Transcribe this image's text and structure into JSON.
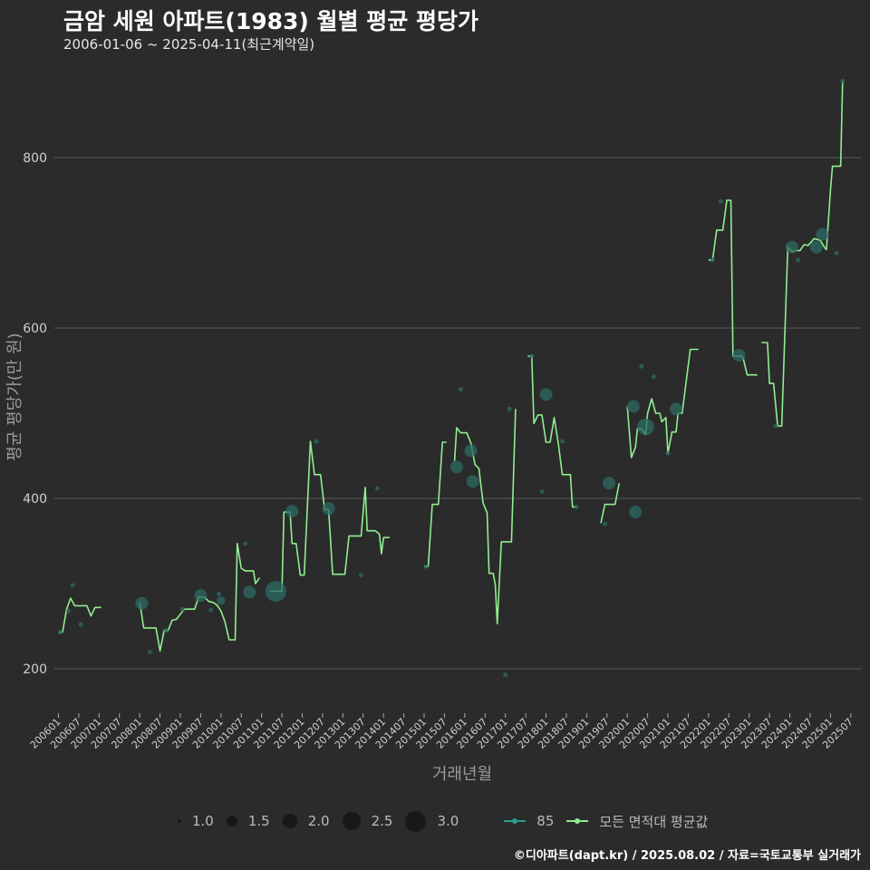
{
  "header": {
    "title": "금암 세원 아파트(1983) 월별 평균 평당가",
    "subtitle": "2006-01-06 ~ 2025-04-11(최근계약일)"
  },
  "credit": "©디아파트(dapt.kr) / 2025.08.02 / 자료=국토교통부 실거래가",
  "colors": {
    "background": "#2b2b2b",
    "grid": "#5a5a5a",
    "avg_line": "#90ee90",
    "area_line": "#2a9d8f",
    "points": "#2e6b63"
  },
  "legend": {
    "size_title": "",
    "sizes": [
      {
        "label": "1.0",
        "value": 1.0
      },
      {
        "label": "1.5",
        "value": 1.5
      },
      {
        "label": "2.0",
        "value": 2.0
      },
      {
        "label": "2.5",
        "value": 2.5
      },
      {
        "label": "3.0",
        "value": 3.0
      }
    ],
    "series": [
      {
        "label": "85",
        "color": "#2a9d8f"
      },
      {
        "label": "모든 면적대 평균값",
        "color": "#90ee90"
      }
    ]
  },
  "chart_data": {
    "type": "line",
    "title": "금암 세원 아파트(1983) 월별 평균 평당가",
    "xlabel": "거래년월",
    "ylabel": "평균 평당가(만 원)",
    "xlim": [
      2005.9,
      2025.75
    ],
    "ylim": [
      150,
      900
    ],
    "yticks": [
      200,
      400,
      600,
      800
    ],
    "xticks": [
      {
        "label": "200601",
        "x": 2006.0
      },
      {
        "label": "200607",
        "x": 2006.5
      },
      {
        "label": "200701",
        "x": 2007.0
      },
      {
        "label": "200707",
        "x": 2007.5
      },
      {
        "label": "200801",
        "x": 2008.0
      },
      {
        "label": "200807",
        "x": 2008.5
      },
      {
        "label": "200901",
        "x": 2009.0
      },
      {
        "label": "200907",
        "x": 2009.5
      },
      {
        "label": "201001",
        "x": 2010.0
      },
      {
        "label": "201007",
        "x": 2010.5
      },
      {
        "label": "201101",
        "x": 2011.0
      },
      {
        "label": "201107",
        "x": 2011.5
      },
      {
        "label": "201201",
        "x": 2012.0
      },
      {
        "label": "201207",
        "x": 2012.5
      },
      {
        "label": "201301",
        "x": 2013.0
      },
      {
        "label": "201307",
        "x": 2013.5
      },
      {
        "label": "201401",
        "x": 2014.0
      },
      {
        "label": "201407",
        "x": 2014.5
      },
      {
        "label": "201501",
        "x": 2015.0
      },
      {
        "label": "201507",
        "x": 2015.5
      },
      {
        "label": "201601",
        "x": 2016.0
      },
      {
        "label": "201607",
        "x": 2016.5
      },
      {
        "label": "201701",
        "x": 2017.0
      },
      {
        "label": "201707",
        "x": 2017.5
      },
      {
        "label": "201801",
        "x": 2018.0
      },
      {
        "label": "201807",
        "x": 2018.5
      },
      {
        "label": "201901",
        "x": 2019.0
      },
      {
        "label": "201907",
        "x": 2019.5
      },
      {
        "label": "202001",
        "x": 2020.0
      },
      {
        "label": "202007",
        "x": 2020.5
      },
      {
        "label": "202101",
        "x": 2021.0
      },
      {
        "label": "202107",
        "x": 2021.5
      },
      {
        "label": "202201",
        "x": 2022.0
      },
      {
        "label": "202207",
        "x": 2022.5
      },
      {
        "label": "202301",
        "x": 2023.0
      },
      {
        "label": "202307",
        "x": 2023.5
      },
      {
        "label": "202401",
        "x": 2024.0
      },
      {
        "label": "202407",
        "x": 2024.5
      },
      {
        "label": "202501",
        "x": 2025.0
      },
      {
        "label": "202507",
        "x": 2025.5
      }
    ],
    "avg_segments": [
      [
        [
          2006.0,
          243
        ],
        [
          2006.1,
          243
        ],
        [
          2006.2,
          270
        ],
        [
          2006.3,
          283
        ],
        [
          2006.4,
          274
        ],
        [
          2006.55,
          274
        ],
        [
          2006.7,
          274
        ],
        [
          2006.8,
          262
        ],
        [
          2006.9,
          272
        ],
        [
          2007.05,
          272
        ]
      ],
      [
        [
          2008.0,
          278
        ],
        [
          2008.1,
          248
        ],
        [
          2008.4,
          248
        ],
        [
          2008.5,
          221
        ],
        [
          2008.6,
          245
        ],
        [
          2008.7,
          245
        ],
        [
          2008.8,
          257
        ],
        [
          2008.9,
          258
        ],
        [
          2009.0,
          264
        ],
        [
          2009.1,
          270
        ],
        [
          2009.35,
          270
        ],
        [
          2009.45,
          284
        ],
        [
          2009.6,
          284
        ],
        [
          2009.7,
          279
        ],
        [
          2009.8,
          278
        ],
        [
          2009.9,
          275
        ],
        [
          2010.0,
          268
        ],
        [
          2010.1,
          255
        ],
        [
          2010.2,
          234
        ],
        [
          2010.35,
          234
        ],
        [
          2010.4,
          347
        ],
        [
          2010.5,
          318
        ],
        [
          2010.6,
          315
        ],
        [
          2010.8,
          315
        ],
        [
          2010.85,
          300
        ],
        [
          2010.95,
          307
        ]
      ],
      [
        [
          2011.2,
          291
        ],
        [
          2011.5,
          291
        ],
        [
          2011.55,
          384
        ],
        [
          2011.7,
          384
        ],
        [
          2011.75,
          347
        ],
        [
          2011.85,
          347
        ],
        [
          2011.95,
          310
        ],
        [
          2012.05,
          310
        ],
        [
          2012.2,
          467
        ],
        [
          2012.3,
          428
        ],
        [
          2012.45,
          428
        ],
        [
          2012.55,
          387
        ],
        [
          2012.65,
          387
        ],
        [
          2012.75,
          311
        ],
        [
          2013.05,
          311
        ],
        [
          2013.15,
          356
        ],
        [
          2013.45,
          356
        ],
        [
          2013.55,
          413
        ],
        [
          2013.6,
          362
        ],
        [
          2013.8,
          362
        ],
        [
          2013.9,
          358
        ],
        [
          2013.95,
          335
        ],
        [
          2014.0,
          354
        ],
        [
          2014.15,
          354
        ]
      ],
      [
        [
          2015.0,
          320
        ],
        [
          2015.1,
          320
        ],
        [
          2015.2,
          393
        ],
        [
          2015.35,
          393
        ],
        [
          2015.45,
          466
        ],
        [
          2015.55,
          466
        ]
      ],
      [
        [
          2015.75,
          444
        ],
        [
          2015.8,
          483
        ],
        [
          2015.9,
          477
        ],
        [
          2016.05,
          477
        ],
        [
          2016.15,
          465
        ],
        [
          2016.25,
          440
        ],
        [
          2016.35,
          435
        ],
        [
          2016.45,
          395
        ],
        [
          2016.55,
          383
        ],
        [
          2016.6,
          312
        ],
        [
          2016.7,
          312
        ],
        [
          2016.75,
          299
        ],
        [
          2016.8,
          253
        ],
        [
          2016.9,
          349
        ],
        [
          2017.15,
          349
        ],
        [
          2017.25,
          505
        ]
      ],
      [
        [
          2017.55,
          567
        ],
        [
          2017.65,
          567
        ],
        [
          2017.7,
          488
        ],
        [
          2017.8,
          498
        ],
        [
          2017.9,
          498
        ],
        [
          2018.0,
          466
        ],
        [
          2018.1,
          466
        ],
        [
          2018.2,
          495
        ],
        [
          2018.3,
          465
        ],
        [
          2018.4,
          428
        ],
        [
          2018.6,
          428
        ],
        [
          2018.65,
          390
        ],
        [
          2018.75,
          390
        ]
      ],
      [
        [
          2019.35,
          371
        ],
        [
          2019.45,
          393
        ],
        [
          2019.7,
          393
        ],
        [
          2019.8,
          418
        ]
      ],
      [
        [
          2020.0,
          508
        ],
        [
          2020.1,
          448
        ],
        [
          2020.2,
          460
        ],
        [
          2020.25,
          482
        ],
        [
          2020.35,
          482
        ],
        [
          2020.45,
          475
        ],
        [
          2020.5,
          500
        ],
        [
          2020.6,
          517
        ],
        [
          2020.7,
          500
        ],
        [
          2020.8,
          500
        ],
        [
          2020.85,
          490
        ],
        [
          2020.95,
          495
        ],
        [
          2021.0,
          453
        ],
        [
          2021.1,
          478
        ],
        [
          2021.2,
          478
        ],
        [
          2021.25,
          500
        ],
        [
          2021.35,
          500
        ],
        [
          2021.55,
          575
        ],
        [
          2021.75,
          575
        ]
      ],
      [
        [
          2022.0,
          680
        ],
        [
          2022.1,
          680
        ],
        [
          2022.2,
          715
        ],
        [
          2022.35,
          715
        ],
        [
          2022.45,
          750
        ],
        [
          2022.55,
          750
        ],
        [
          2022.6,
          567
        ],
        [
          2022.8,
          567
        ],
        [
          2022.85,
          565
        ],
        [
          2022.95,
          545
        ],
        [
          2023.2,
          545
        ]
      ],
      [
        [
          2023.3,
          583
        ],
        [
          2023.45,
          583
        ],
        [
          2023.5,
          535
        ],
        [
          2023.6,
          535
        ],
        [
          2023.7,
          485
        ],
        [
          2023.8,
          485
        ],
        [
          2023.95,
          695
        ],
        [
          2024.05,
          690
        ],
        [
          2024.15,
          691
        ],
        [
          2024.25,
          691
        ],
        [
          2024.35,
          698
        ],
        [
          2024.45,
          697
        ],
        [
          2024.6,
          705
        ],
        [
          2024.75,
          703
        ],
        [
          2024.85,
          695
        ],
        [
          2024.9,
          692
        ],
        [
          2025.0,
          762
        ],
        [
          2025.05,
          790
        ],
        [
          2025.25,
          790
        ],
        [
          2025.3,
          890
        ]
      ]
    ],
    "area_points": [
      {
        "x": 2006.05,
        "y": 243,
        "size": 1.0
      },
      {
        "x": 2006.25,
        "y": 268,
        "size": 1.0
      },
      {
        "x": 2006.35,
        "y": 298,
        "size": 1.0
      },
      {
        "x": 2006.55,
        "y": 252,
        "size": 1.0
      },
      {
        "x": 2008.05,
        "y": 277,
        "size": 2.0
      },
      {
        "x": 2008.25,
        "y": 220,
        "size": 1.0
      },
      {
        "x": 2008.65,
        "y": 245,
        "size": 1.0
      },
      {
        "x": 2009.05,
        "y": 270,
        "size": 1.0
      },
      {
        "x": 2009.5,
        "y": 286,
        "size": 2.0
      },
      {
        "x": 2009.75,
        "y": 269,
        "size": 1.0
      },
      {
        "x": 2009.95,
        "y": 288,
        "size": 1.0
      },
      {
        "x": 2010.0,
        "y": 280,
        "size": 1.5
      },
      {
        "x": 2010.6,
        "y": 347,
        "size": 1.0
      },
      {
        "x": 2010.7,
        "y": 290,
        "size": 2.0
      },
      {
        "x": 2011.35,
        "y": 291,
        "size": 3.0
      },
      {
        "x": 2011.75,
        "y": 385,
        "size": 2.0
      },
      {
        "x": 2012.35,
        "y": 467,
        "size": 1.0
      },
      {
        "x": 2012.65,
        "y": 388,
        "size": 2.0
      },
      {
        "x": 2013.45,
        "y": 310,
        "size": 1.0
      },
      {
        "x": 2013.85,
        "y": 412,
        "size": 1.0
      },
      {
        "x": 2015.05,
        "y": 320,
        "size": 1.0
      },
      {
        "x": 2015.8,
        "y": 437,
        "size": 2.0
      },
      {
        "x": 2015.9,
        "y": 528,
        "size": 1.0
      },
      {
        "x": 2016.15,
        "y": 456,
        "size": 2.0
      },
      {
        "x": 2016.2,
        "y": 420,
        "size": 2.0
      },
      {
        "x": 2017.0,
        "y": 193,
        "size": 1.0
      },
      {
        "x": 2017.1,
        "y": 505,
        "size": 1.0
      },
      {
        "x": 2017.65,
        "y": 567,
        "size": 1.0
      },
      {
        "x": 2017.9,
        "y": 408,
        "size": 1.0
      },
      {
        "x": 2018.0,
        "y": 522,
        "size": 2.0
      },
      {
        "x": 2018.4,
        "y": 467,
        "size": 1.0
      },
      {
        "x": 2018.75,
        "y": 390,
        "size": 1.0
      },
      {
        "x": 2019.45,
        "y": 370,
        "size": 1.0
      },
      {
        "x": 2019.55,
        "y": 418,
        "size": 2.0
      },
      {
        "x": 2020.15,
        "y": 508,
        "size": 2.0
      },
      {
        "x": 2020.2,
        "y": 384,
        "size": 2.0
      },
      {
        "x": 2020.35,
        "y": 555,
        "size": 1.0
      },
      {
        "x": 2020.45,
        "y": 484,
        "size": 2.5
      },
      {
        "x": 2020.65,
        "y": 543,
        "size": 1.0
      },
      {
        "x": 2021.0,
        "y": 453,
        "size": 1.0
      },
      {
        "x": 2021.2,
        "y": 505,
        "size": 2.0
      },
      {
        "x": 2022.1,
        "y": 680,
        "size": 1.0
      },
      {
        "x": 2022.3,
        "y": 749,
        "size": 1.0
      },
      {
        "x": 2022.75,
        "y": 568,
        "size": 2.0
      },
      {
        "x": 2023.65,
        "y": 485,
        "size": 1.0
      },
      {
        "x": 2024.05,
        "y": 695,
        "size": 2.0
      },
      {
        "x": 2024.2,
        "y": 680,
        "size": 1.0
      },
      {
        "x": 2024.65,
        "y": 695,
        "size": 2.0
      },
      {
        "x": 2024.8,
        "y": 710,
        "size": 2.0
      },
      {
        "x": 2025.15,
        "y": 688,
        "size": 1.0
      },
      {
        "x": 2025.3,
        "y": 890,
        "size": 1.0
      }
    ]
  }
}
